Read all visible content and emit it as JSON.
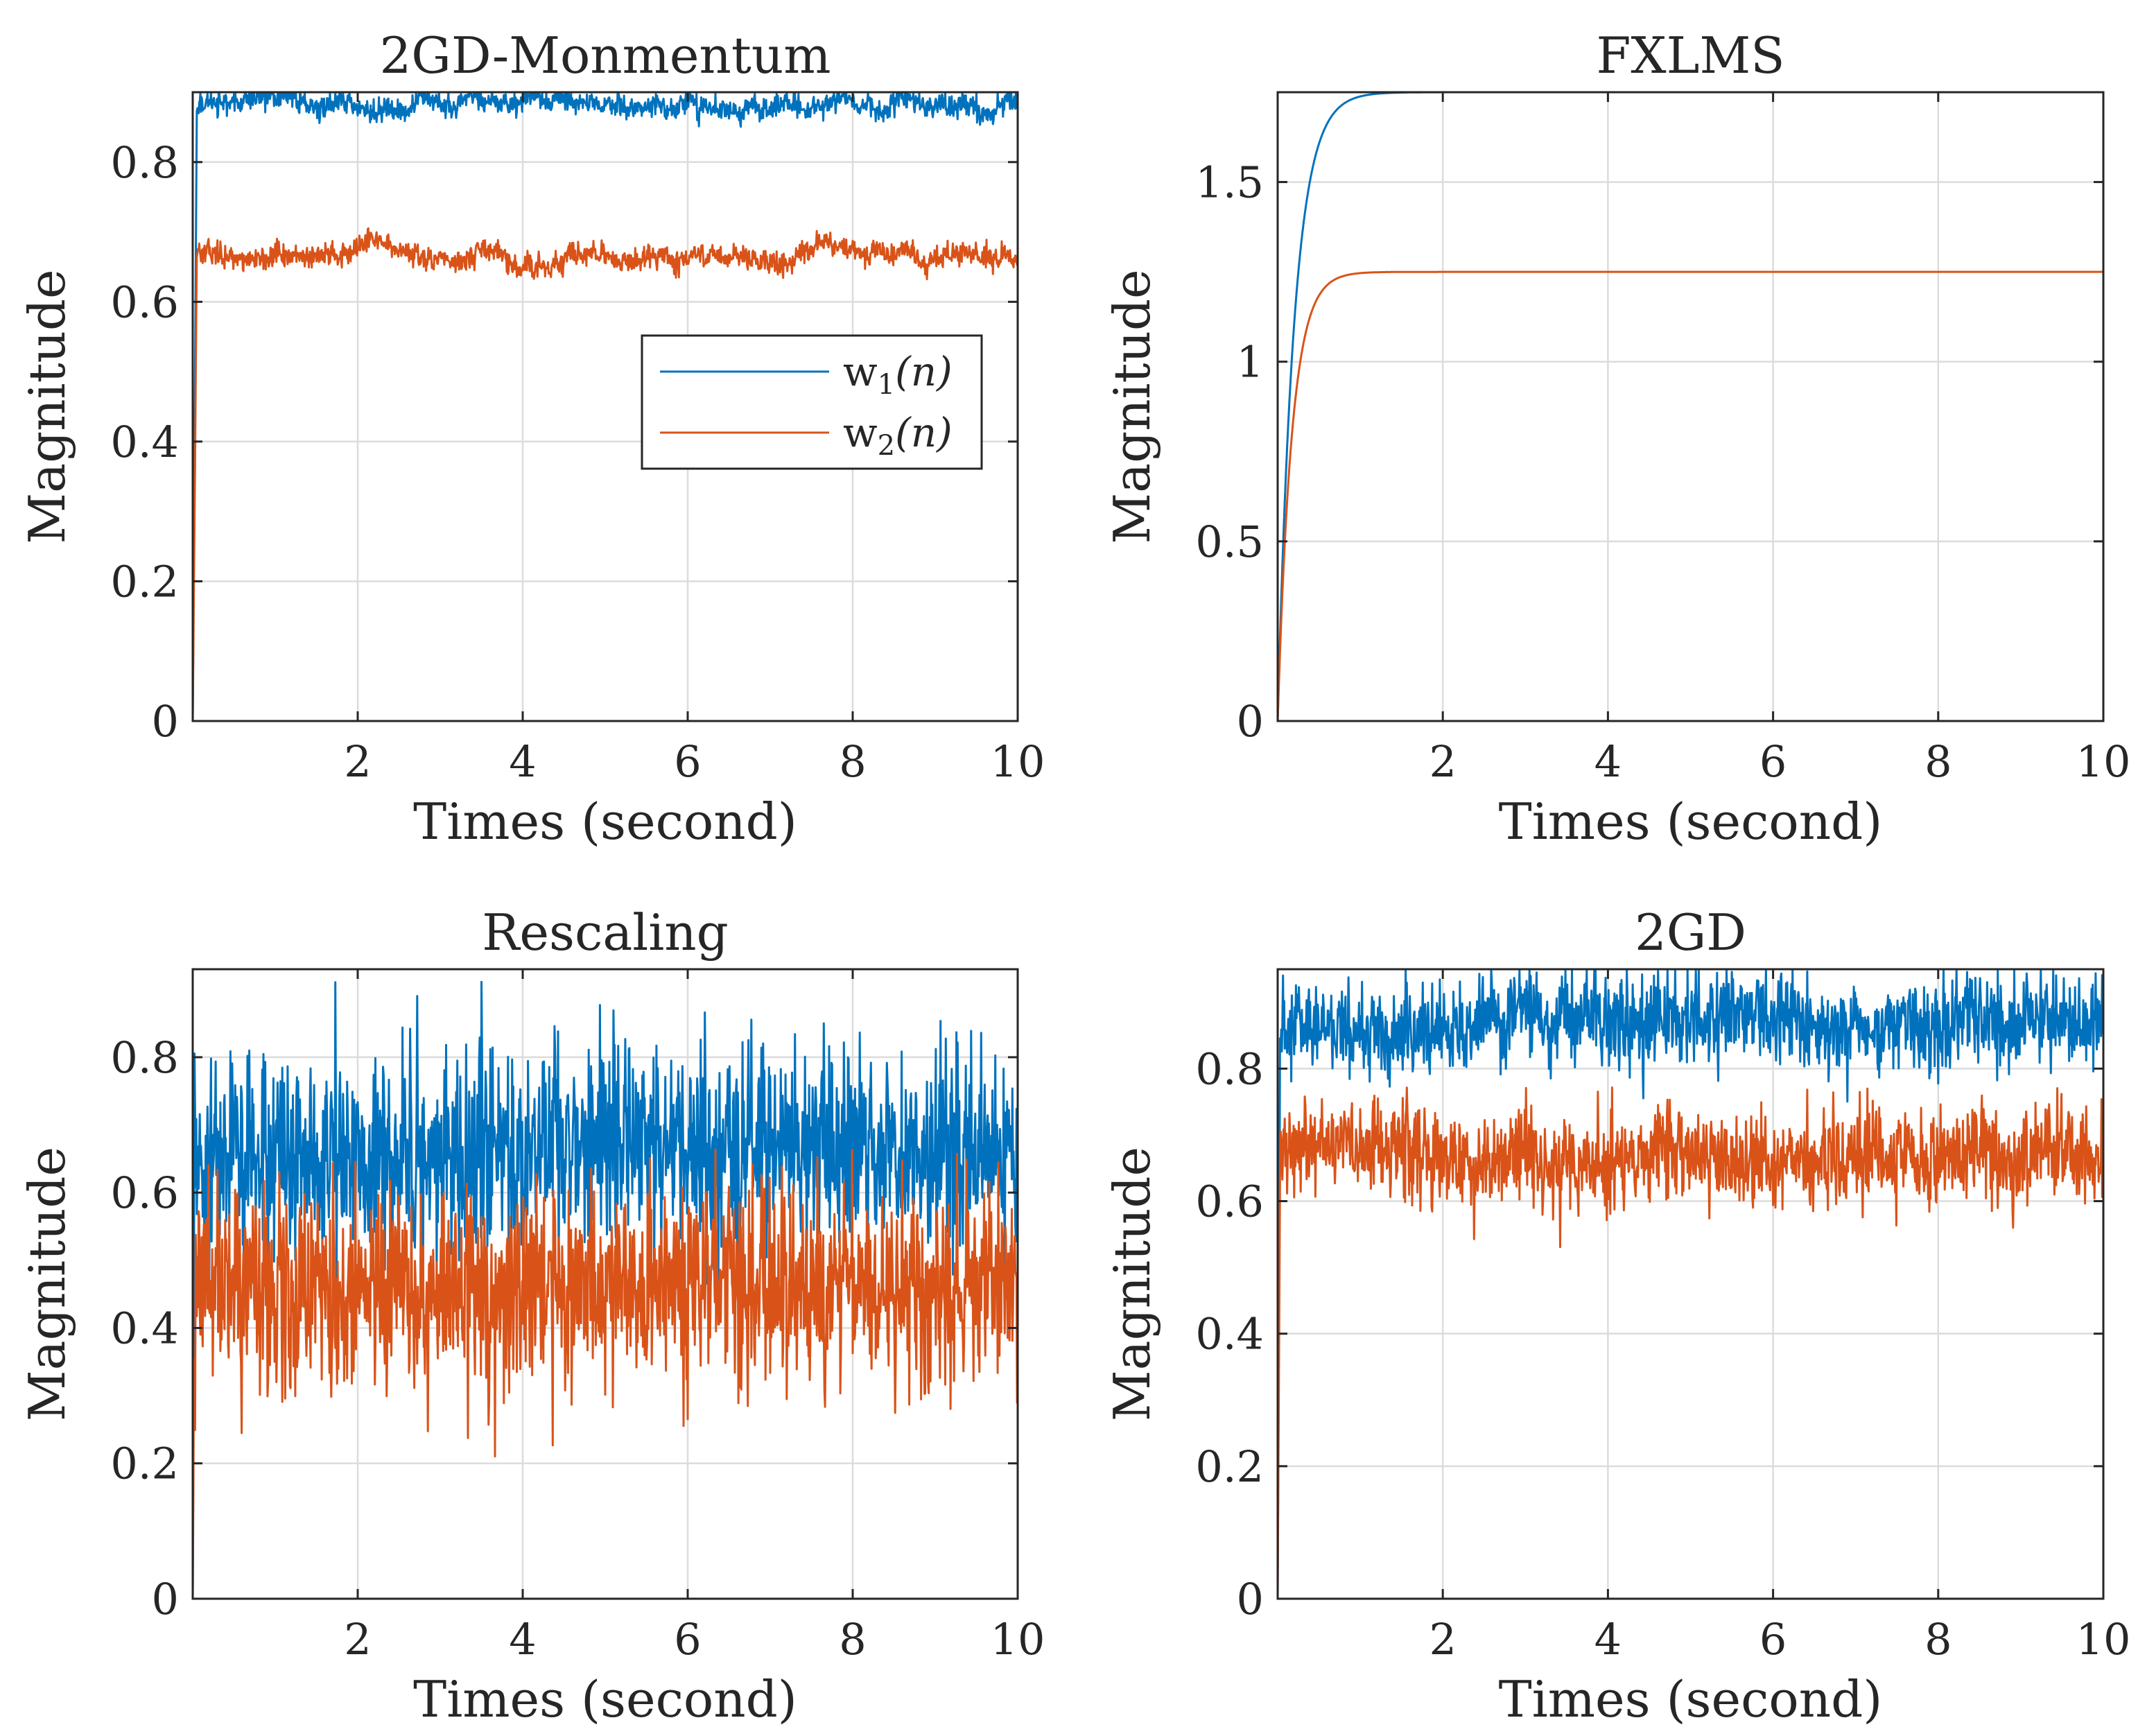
{
  "figure": {
    "series_colors": {
      "w1": "#0072BD",
      "w2": "#D95319"
    },
    "legend": {
      "placement": "inside-right",
      "entries": [
        {
          "name": "w",
          "sub": "1",
          "arg": "(n)"
        },
        {
          "name": "w",
          "sub": "2",
          "arg": "(n)"
        }
      ]
    }
  },
  "chart_data": [
    {
      "id": "momentum",
      "type": "line",
      "title": "2GD-Monmentum",
      "xlabel": "Times (second)",
      "ylabel": "Magnitude",
      "xlim": [
        0,
        10
      ],
      "ylim": [
        0,
        0.9
      ],
      "xticks": [
        2,
        4,
        6,
        8,
        10
      ],
      "xtick_labels": [
        "2",
        "4",
        "6",
        "8",
        "10"
      ],
      "yticks": [
        0,
        0.2,
        0.4,
        0.6,
        0.8
      ],
      "ytick_labels": [
        "0",
        "0.2",
        "0.4",
        "0.6",
        "0.8"
      ],
      "grid": true,
      "legend": true,
      "series": [
        {
          "name": "w1(n)",
          "rise_time": 0.05,
          "steady": 0.885,
          "noise": 0.008,
          "wander": 0.012
        },
        {
          "name": "w2(n)",
          "rise_time": 0.05,
          "steady": 0.665,
          "noise": 0.008,
          "wander": 0.012
        }
      ]
    },
    {
      "id": "fxlms",
      "type": "line",
      "title": "FXLMS",
      "xlabel": "Times (second)",
      "ylabel": "Magnitude",
      "xlim": [
        0,
        10
      ],
      "ylim": [
        0,
        1.75
      ],
      "xticks": [
        2,
        4,
        6,
        8,
        10
      ],
      "xtick_labels": [
        "2",
        "4",
        "6",
        "8",
        "10"
      ],
      "yticks": [
        0,
        0.5,
        1,
        1.5
      ],
      "ytick_labels": [
        "0",
        "0.5",
        "1",
        "1.5"
      ],
      "grid": true,
      "legend": false,
      "series": [
        {
          "name": "w1(n)",
          "steady": 1.75,
          "tau": 0.2,
          "noise": 0,
          "wander": 0
        },
        {
          "name": "w2(n)",
          "steady": 1.25,
          "tau": 0.17,
          "noise": 0,
          "wander": 0
        }
      ]
    },
    {
      "id": "rescaling",
      "type": "line",
      "title": "Rescaling",
      "xlabel": "Times (second)",
      "ylabel": "Magnitude",
      "xlim": [
        0,
        10
      ],
      "ylim": [
        0,
        0.93
      ],
      "xticks": [
        2,
        4,
        6,
        8,
        10
      ],
      "xtick_labels": [
        "2",
        "4",
        "6",
        "8",
        "10"
      ],
      "yticks": [
        0,
        0.2,
        0.4,
        0.6,
        0.8
      ],
      "ytick_labels": [
        "0",
        "0.2",
        "0.4",
        "0.6",
        "0.8"
      ],
      "grid": true,
      "legend": false,
      "series": [
        {
          "name": "w1(n)",
          "rise_time": 0.02,
          "steady": 0.66,
          "noise": 0.075,
          "wander": 0.01
        },
        {
          "name": "w2(n)",
          "rise_time": 0.02,
          "steady": 0.46,
          "noise": 0.075,
          "wander": 0.01
        }
      ]
    },
    {
      "id": "twogd",
      "type": "line",
      "title": "2GD",
      "xlabel": "Times (second)",
      "ylabel": "Magnitude",
      "xlim": [
        0,
        10
      ],
      "ylim": [
        0,
        0.95
      ],
      "xticks": [
        2,
        4,
        6,
        8,
        10
      ],
      "xtick_labels": [
        "2",
        "4",
        "6",
        "8",
        "10"
      ],
      "yticks": [
        0,
        0.2,
        0.4,
        0.6,
        0.8
      ],
      "ytick_labels": [
        "0",
        "0.2",
        "0.4",
        "0.6",
        "0.8"
      ],
      "grid": true,
      "legend": false,
      "series": [
        {
          "name": "w1(n)",
          "rise_time": 0.03,
          "steady": 0.865,
          "noise": 0.035,
          "wander": 0.015
        },
        {
          "name": "w2(n)",
          "rise_time": 0.03,
          "steady": 0.665,
          "noise": 0.035,
          "wander": 0.015
        }
      ]
    }
  ]
}
